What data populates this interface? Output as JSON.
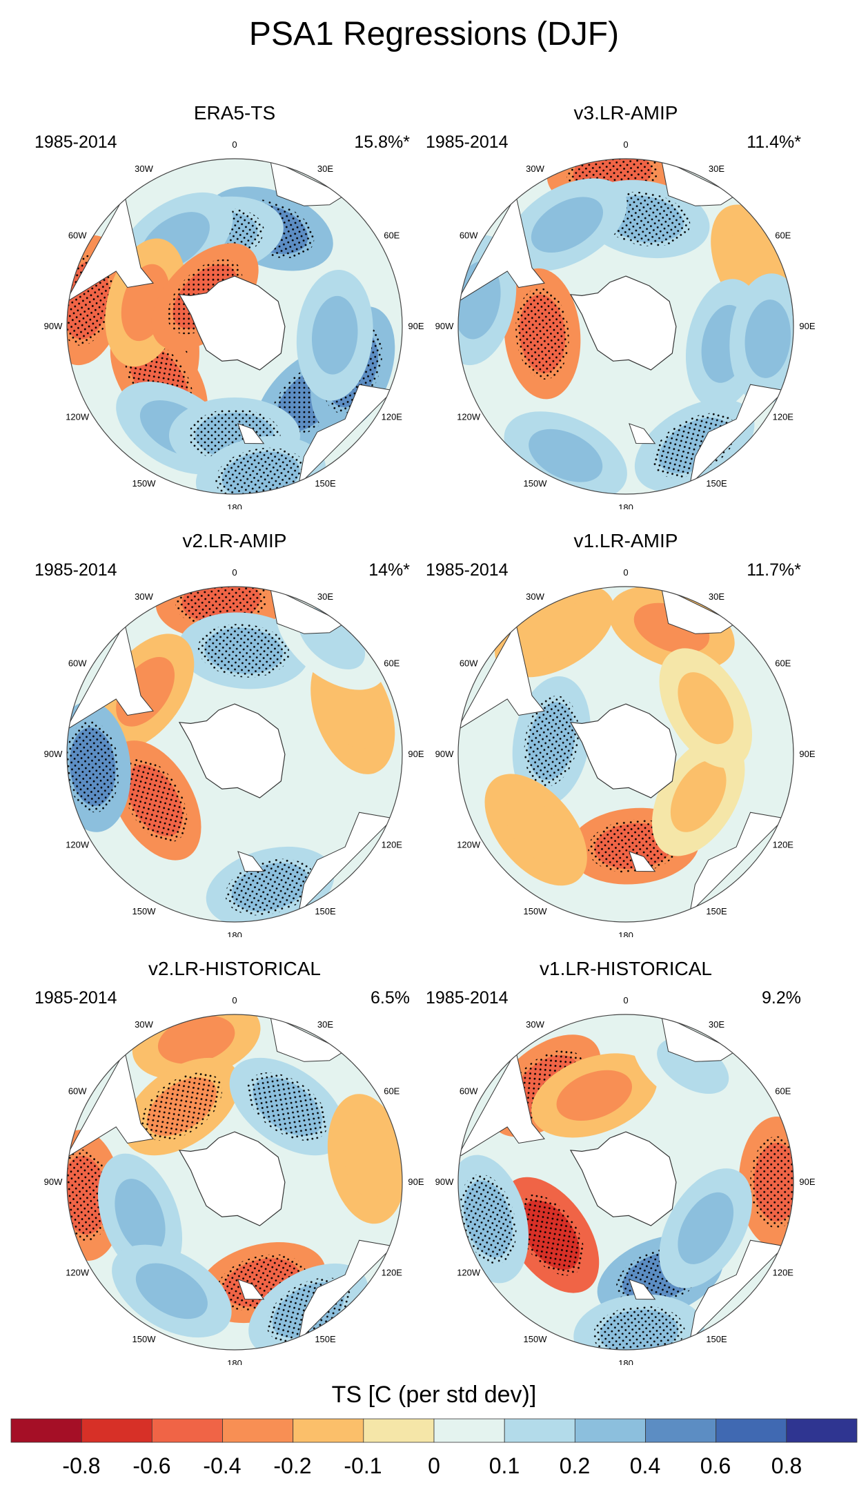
{
  "title": "PSA1 Regressions (DJF)",
  "colorbar": {
    "title": "TS [C (per std dev)]",
    "colors": [
      "#a50f26",
      "#d73027",
      "#f06446",
      "#f88f54",
      "#fbbf6a",
      "#f5e6a8",
      "#e4f3ef",
      "#b3dbea",
      "#8cbfdd",
      "#5c8dc3",
      "#4069b2",
      "#2f3591"
    ],
    "labels": [
      "-0.8",
      "-0.6",
      "-0.4",
      "-0.2",
      "-0.1",
      "0",
      "0.1",
      "0.2",
      "0.4",
      "0.6",
      "0.8"
    ]
  },
  "longitude_labels": [
    "0",
    "30E",
    "60E",
    "90E",
    "120E",
    "150E",
    "180",
    "150W",
    "120W",
    "90W",
    "60W",
    "30W"
  ],
  "panels": [
    {
      "title": "ERA5-TS",
      "period": "1985-2014",
      "variance": "15.8%*"
    },
    {
      "title": "v3.LR-AMIP",
      "period": "1985-2014",
      "variance": "11.4%*"
    },
    {
      "title": "v2.LR-AMIP",
      "period": "1985-2014",
      "variance": "14%*"
    },
    {
      "title": "v1.LR-AMIP",
      "period": "1985-2014",
      "variance": "11.7%*"
    },
    {
      "title": "v2.LR-HISTORICAL",
      "period": "1985-2014",
      "variance": "6.5%"
    },
    {
      "title": "v1.LR-HISTORICAL",
      "period": "1985-2014",
      "variance": "9.2%"
    }
  ],
  "anomalies": [
    [
      {
        "lon": 135,
        "r": 0.62,
        "v": 0.45,
        "s": 1
      },
      {
        "lon": 110,
        "r": 0.75,
        "v": 0.5,
        "s": 1
      },
      {
        "lon": 95,
        "r": 0.6,
        "v": 0.3,
        "s": 0
      },
      {
        "lon": 20,
        "r": 0.62,
        "v": 0.4,
        "s": 1
      },
      {
        "lon": -10,
        "r": 0.55,
        "v": 0.35,
        "s": 1
      },
      {
        "lon": -35,
        "r": 0.62,
        "v": 0.25,
        "s": 0
      },
      {
        "lon": -100,
        "r": 0.45,
        "v": -0.7,
        "s": 1
      },
      {
        "lon": -125,
        "r": 0.55,
        "v": -0.55,
        "s": 1
      },
      {
        "lon": -80,
        "r": 0.9,
        "v": -0.45,
        "s": 1
      },
      {
        "lon": -75,
        "r": 0.55,
        "v": -0.3,
        "s": 0
      },
      {
        "lon": -45,
        "r": 0.25,
        "v": -0.45,
        "s": 1
      },
      {
        "lon": -150,
        "r": 0.7,
        "v": 0.25,
        "s": 0
      },
      {
        "lon": 180,
        "r": 0.65,
        "v": 0.35,
        "s": 1
      },
      {
        "lon": 170,
        "r": 0.9,
        "v": 0.3,
        "s": 1
      }
    ],
    [
      {
        "lon": -5,
        "r": 0.92,
        "v": -0.5,
        "s": 1
      },
      {
        "lon": 10,
        "r": 0.65,
        "v": 0.35,
        "s": 1
      },
      {
        "lon": -30,
        "r": 0.7,
        "v": 0.3,
        "s": 0
      },
      {
        "lon": -95,
        "r": 0.5,
        "v": -0.45,
        "s": 1
      },
      {
        "lon": 150,
        "r": 0.82,
        "v": 0.35,
        "s": 1
      },
      {
        "lon": -155,
        "r": 0.85,
        "v": 0.25,
        "s": 0
      },
      {
        "lon": -80,
        "r": 0.9,
        "v": 0.2,
        "s": 0
      },
      {
        "lon": 65,
        "r": 0.85,
        "v": -0.2,
        "s": 0
      },
      {
        "lon": 100,
        "r": 0.6,
        "v": 0.2,
        "s": 0
      },
      {
        "lon": 95,
        "r": 0.85,
        "v": 0.2,
        "s": 0
      }
    ],
    [
      {
        "lon": -5,
        "r": 0.92,
        "v": -0.5,
        "s": 1
      },
      {
        "lon": 5,
        "r": 0.62,
        "v": 0.3,
        "s": 1
      },
      {
        "lon": -55,
        "r": 0.65,
        "v": -0.3,
        "s": 0
      },
      {
        "lon": -120,
        "r": 0.55,
        "v": -0.55,
        "s": 1
      },
      {
        "lon": -95,
        "r": 0.85,
        "v": 0.45,
        "s": 1
      },
      {
        "lon": 165,
        "r": 0.82,
        "v": 0.35,
        "s": 1
      },
      {
        "lon": 70,
        "r": 0.75,
        "v": -0.2,
        "s": 0
      },
      {
        "lon": 40,
        "r": 0.9,
        "v": 0.15,
        "s": 0
      }
    ],
    [
      {
        "lon": -80,
        "r": 0.45,
        "v": 0.35,
        "s": 1
      },
      {
        "lon": 175,
        "r": 0.55,
        "v": -0.55,
        "s": 1
      },
      {
        "lon": 20,
        "r": 0.8,
        "v": -0.25,
        "s": 0
      },
      {
        "lon": -30,
        "r": 0.85,
        "v": -0.2,
        "s": 0
      },
      {
        "lon": -130,
        "r": 0.7,
        "v": -0.2,
        "s": 0
      },
      {
        "lon": 120,
        "r": 0.5,
        "v": -0.15,
        "s": 0
      },
      {
        "lon": 60,
        "r": 0.55,
        "v": -0.15,
        "s": 0
      }
    ],
    [
      {
        "lon": -15,
        "r": 0.88,
        "v": -0.3,
        "s": 0
      },
      {
        "lon": -35,
        "r": 0.55,
        "v": -0.3,
        "s": 1
      },
      {
        "lon": 35,
        "r": 0.55,
        "v": 0.3,
        "s": 1
      },
      {
        "lon": -95,
        "r": 0.9,
        "v": -0.5,
        "s": 1
      },
      {
        "lon": -110,
        "r": 0.6,
        "v": 0.35,
        "s": 0
      },
      {
        "lon": 165,
        "r": 0.62,
        "v": -0.6,
        "s": 1
      },
      {
        "lon": 150,
        "r": 0.88,
        "v": 0.3,
        "s": 1
      },
      {
        "lon": -150,
        "r": 0.75,
        "v": 0.2,
        "s": 0
      },
      {
        "lon": 80,
        "r": 0.8,
        "v": -0.2,
        "s": 0
      }
    ],
    [
      {
        "lon": -40,
        "r": 0.75,
        "v": -0.5,
        "s": 1
      },
      {
        "lon": -20,
        "r": 0.55,
        "v": -0.35,
        "s": 0
      },
      {
        "lon": 90,
        "r": 0.9,
        "v": -0.5,
        "s": 1
      },
      {
        "lon": -125,
        "r": 0.55,
        "v": -0.75,
        "s": 1
      },
      {
        "lon": -105,
        "r": 0.85,
        "v": 0.35,
        "s": 1
      },
      {
        "lon": 160,
        "r": 0.6,
        "v": 0.4,
        "s": 1
      },
      {
        "lon": 175,
        "r": 0.9,
        "v": 0.35,
        "s": 1
      },
      {
        "lon": 30,
        "r": 0.8,
        "v": 0.15,
        "s": 0
      },
      {
        "lon": 120,
        "r": 0.55,
        "v": 0.2,
        "s": 0
      }
    ]
  ]
}
